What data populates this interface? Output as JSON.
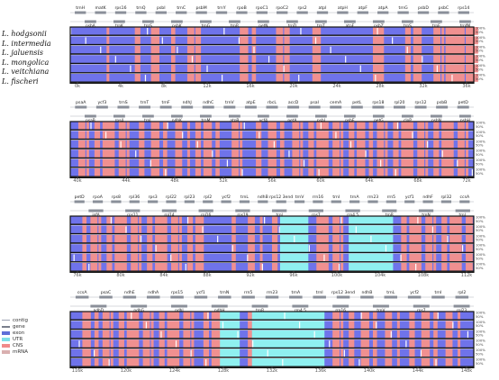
{
  "species": [
    "L. hodgsonii",
    "L. intermedia",
    "L. jaluensis",
    "L. mongolica",
    "L. veitchiana",
    "L. fischeri"
  ],
  "legend": [
    {
      "label": "contig",
      "color": "#9aa0b0",
      "kind": "line"
    },
    {
      "label": "gene",
      "color": "#7a7f8c",
      "kind": "arrow"
    },
    {
      "label": "exon",
      "color": "#5f6fd8",
      "kind": "box"
    },
    {
      "label": "UTR",
      "color": "#7fe0e8",
      "kind": "box"
    },
    {
      "label": "CNS",
      "color": "#f08a8a",
      "kind": "box"
    },
    {
      "label": "mRNA",
      "color": "#d9b0b0",
      "kind": "box"
    }
  ],
  "colors": {
    "exon": "#6f73ea",
    "utr": "#8ff0f0",
    "cns": "#f09090",
    "frame": "#111111",
    "gene": "#8a8f99"
  },
  "percent_labels": [
    "100%",
    "50%"
  ],
  "panels": [
    {
      "ticks": [
        "0k",
        "4k",
        "8k",
        "12k",
        "16k",
        "20k",
        "24k",
        "28k",
        "32k",
        "36k"
      ],
      "genes_top": [
        "trnH",
        "matK",
        "rps16",
        "trnQ",
        "psbI",
        "trnC",
        "psbM",
        "trnY",
        "rpoB",
        "rpoC1",
        "rpoC2",
        "rps2",
        "atpI",
        "atpH",
        "atpF",
        "atpA",
        "trnG",
        "psbD",
        "psbC",
        "rps14"
      ],
      "genes_bottom": [
        "psbA",
        "trnK",
        "trnS",
        "psbK",
        "trnG",
        "trnR",
        "petN",
        "trnD",
        "trnT",
        "atpF",
        "psbZ",
        "trnS",
        "trnE",
        "trnfM"
      ],
      "utr": [],
      "cns": [
        0.09,
        0.16,
        0.2,
        0.25,
        0.29,
        0.3,
        0.31,
        0.42,
        0.45,
        0.51,
        0.52,
        0.53,
        0.6,
        0.75,
        0.76,
        0.77,
        0.83,
        0.85,
        0.86,
        0.9,
        0.92,
        0.93,
        0.94,
        0.95,
        0.96,
        0.97,
        0.98,
        0.99
      ]
    },
    {
      "ticks": [
        "40k",
        "44k",
        "48k",
        "52k",
        "56k",
        "60k",
        "64k",
        "68k",
        "72k"
      ],
      "genes_top": [
        "psaA",
        "ycf3",
        "trnS",
        "trnT",
        "trnF",
        "ndhJ",
        "ndhC",
        "trnV",
        "atpE",
        "rbcL",
        "accD",
        "psaI",
        "cemA",
        "petL",
        "rps18",
        "rpl20",
        "rps12",
        "psbB",
        "petD"
      ],
      "genes_bottom": [
        "psaB",
        "rps4",
        "trnL",
        "ndhK",
        "trnM",
        "atpB",
        "ycf4",
        "petA",
        "psbJ",
        "psbE",
        "petG",
        "clpP",
        "psbN",
        "psbH"
      ],
      "utr": [],
      "cns": [
        0.02,
        0.04,
        0.06,
        0.08,
        0.1,
        0.12,
        0.14,
        0.17,
        0.2,
        0.23,
        0.26,
        0.29,
        0.31,
        0.33,
        0.36,
        0.4,
        0.42,
        0.46,
        0.49,
        0.52,
        0.55,
        0.57,
        0.59,
        0.61,
        0.63,
        0.65,
        0.67,
        0.69,
        0.71,
        0.74,
        0.76,
        0.78,
        0.8,
        0.82,
        0.84,
        0.86,
        0.88,
        0.9,
        0.92,
        0.94,
        0.96,
        0.98
      ]
    },
    {
      "ticks": [
        "76k",
        "80k",
        "84k",
        "88k",
        "92k",
        "96k",
        "100k",
        "104k",
        "108k",
        "112k"
      ],
      "genes_top": [
        "petD",
        "rpoA",
        "rps8",
        "rpl36",
        "rps3",
        "rpl22",
        "rpl23",
        "rpl2",
        "ycf2",
        "trnL",
        "ndhB",
        "rps12 3end",
        "trnV",
        "rrn16",
        "trnI",
        "trnA",
        "rrn23",
        "rrn5",
        "ycf1",
        "ndhF",
        "rpl32",
        "ccsA"
      ],
      "genes_bottom": [
        "infA",
        "rps11",
        "rpl14",
        "rpl16",
        "rps19",
        "trnI",
        "rps7",
        "rrn4.5",
        "trnR",
        "trnN",
        "trnL"
      ],
      "utr": [
        [
          0.52,
          0.59
        ],
        [
          0.69,
          0.8
        ]
      ],
      "cns": [
        0.03,
        0.05,
        0.07,
        0.09,
        0.11,
        0.13,
        0.15,
        0.17,
        0.19,
        0.21,
        0.23,
        0.25,
        0.27,
        0.29,
        0.31,
        0.4,
        0.44,
        0.47,
        0.5,
        0.61,
        0.63,
        0.65,
        0.67,
        0.82,
        0.84,
        0.86,
        0.88,
        0.9,
        0.92,
        0.94,
        0.96,
        0.98
      ]
    },
    {
      "ticks": [
        "116k",
        "120k",
        "124k",
        "128k",
        "132k",
        "136k",
        "140k",
        "144k",
        "148k"
      ],
      "genes_top": [
        "ccsA",
        "psaC",
        "ndhE",
        "ndhA",
        "rps15",
        "ycf1",
        "trnN",
        "rrn5",
        "rrn23",
        "trnA",
        "trnI",
        "rps12 3end",
        "ndhB",
        "trnL",
        "ycf2",
        "trnI",
        "rpl2"
      ],
      "genes_bottom": [
        "ndhD",
        "ndhG",
        "ndhI",
        "ndhH",
        "trnR",
        "rrn4.5",
        "rrn16",
        "trnV",
        "rps7",
        "rpl23"
      ],
      "utr": [
        [
          0.36,
          0.42
        ],
        [
          0.45,
          0.63
        ]
      ],
      "cns": [
        0.03,
        0.06,
        0.08,
        0.1,
        0.12,
        0.14,
        0.16,
        0.18,
        0.2,
        0.22,
        0.24,
        0.26,
        0.28,
        0.3,
        0.33,
        0.35,
        0.44,
        0.65,
        0.67,
        0.69,
        0.72,
        0.75,
        0.78,
        0.81,
        0.84,
        0.87,
        0.9,
        0.93,
        0.96
      ]
    }
  ]
}
